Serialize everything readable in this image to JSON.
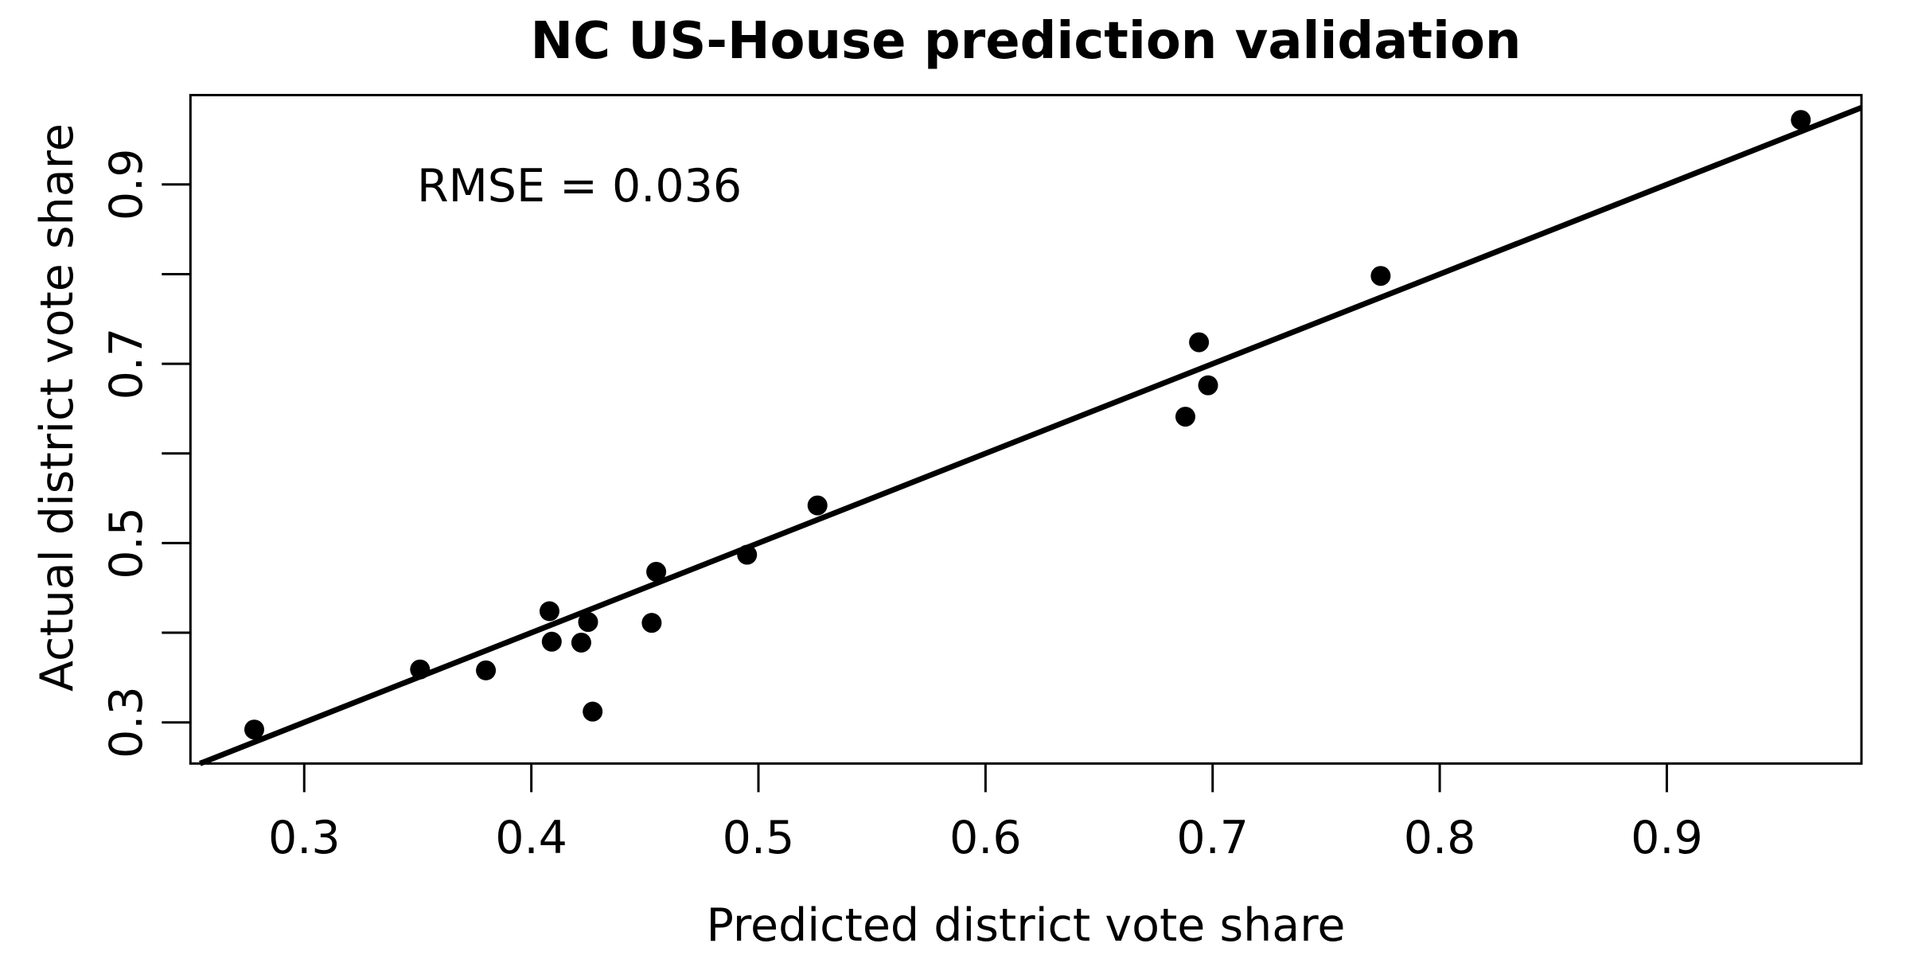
{
  "figure": {
    "background_color": "#ffffff",
    "foreground_color": "#000000"
  },
  "chart_data": {
    "type": "scatter",
    "title": "NC US-House prediction validation",
    "xlabel": "Predicted district vote share",
    "ylabel": "Actual district vote share",
    "annotation": {
      "text": "RMSE = 0.036",
      "x": 0.42,
      "y": 0.9
    },
    "xlim": [
      0.2499,
      0.9857
    ],
    "ylim": [
      0.2541,
      0.9997
    ],
    "x_ticks": [
      0.3,
      0.4,
      0.5,
      0.6,
      0.7,
      0.8,
      0.9
    ],
    "x_tick_labels": [
      "0.3",
      "0.4",
      "0.5",
      "0.6",
      "0.7",
      "0.8",
      "0.9"
    ],
    "y_ticks": [
      0.3,
      0.4,
      0.5,
      0.6,
      0.7,
      0.8,
      0.9
    ],
    "y_tick_labels": [
      "0.3",
      "",
      "0.5",
      "",
      "0.7",
      "",
      "0.9"
    ],
    "grid": false,
    "legend": null,
    "reference_line": {
      "slope": 1,
      "intercept": 0,
      "color": "#000000"
    },
    "point_color": "#000000",
    "points": [
      {
        "x": 0.278,
        "y": 0.292
      },
      {
        "x": 0.351,
        "y": 0.359
      },
      {
        "x": 0.38,
        "y": 0.358
      },
      {
        "x": 0.408,
        "y": 0.424
      },
      {
        "x": 0.409,
        "y": 0.39
      },
      {
        "x": 0.422,
        "y": 0.389
      },
      {
        "x": 0.425,
        "y": 0.412
      },
      {
        "x": 0.427,
        "y": 0.312
      },
      {
        "x": 0.453,
        "y": 0.411
      },
      {
        "x": 0.455,
        "y": 0.468
      },
      {
        "x": 0.495,
        "y": 0.487
      },
      {
        "x": 0.526,
        "y": 0.542
      },
      {
        "x": 0.688,
        "y": 0.641
      },
      {
        "x": 0.694,
        "y": 0.724
      },
      {
        "x": 0.698,
        "y": 0.676
      },
      {
        "x": 0.774,
        "y": 0.798
      },
      {
        "x": 0.959,
        "y": 0.972
      }
    ]
  }
}
